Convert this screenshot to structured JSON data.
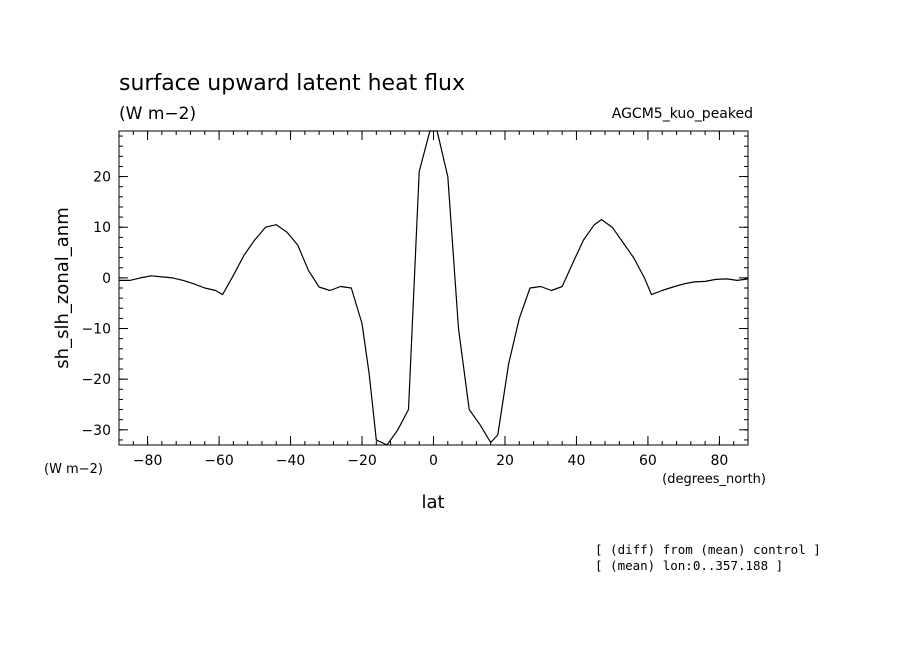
{
  "chart_data": {
    "type": "line",
    "title": "surface upward latent heat flux",
    "units": "(W m−2)",
    "run_label": "AGCM5_kuo_peaked",
    "xlabel": "lat",
    "xunits": "(degrees_north)",
    "ylabel": "sh_slh_zonal_anm",
    "yunits": "(W m−2)",
    "notes": [
      "[ (diff) from (mean) control ]",
      "[ (mean) lon:0..357.188 ]"
    ],
    "xlim": [
      -88,
      88
    ],
    "ylim": [
      -33,
      29
    ],
    "x_ticks": [
      -80,
      -60,
      -40,
      -20,
      0,
      20,
      40,
      60,
      80
    ],
    "x_tick_labels": [
      "−80",
      "−60",
      "−40",
      "−20",
      "0",
      "20",
      "40",
      "60",
      "80"
    ],
    "y_ticks": [
      -30,
      -20,
      -10,
      0,
      10,
      20
    ],
    "y_tick_labels": [
      "−30",
      "−20",
      "−10",
      "0",
      "10",
      "20"
    ],
    "grid": false,
    "series": [
      {
        "x": [
          -88,
          -85,
          -82,
          -79,
          -76,
          -73,
          -70,
          -67,
          -64,
          -61,
          -59,
          -56,
          -53,
          -50,
          -47,
          -44,
          -41,
          -38,
          -35,
          -32,
          -29,
          -26,
          -23,
          -20,
          -18,
          -16,
          -13,
          -10,
          -7,
          -4,
          -1,
          1,
          4,
          7,
          10,
          13,
          16,
          18,
          21,
          24,
          27,
          30,
          33,
          36,
          39,
          42,
          45,
          47,
          50,
          53,
          56,
          59,
          61,
          64,
          67,
          70,
          73,
          76,
          79,
          82,
          85,
          88
        ],
        "values": [
          -0.5,
          -0.5,
          0,
          0.4,
          0.2,
          0,
          -0.5,
          -1.2,
          -2,
          -2.5,
          -3.3,
          0.5,
          4.5,
          7.5,
          10,
          10.5,
          9,
          6.5,
          1.5,
          -1.8,
          -2.5,
          -1.7,
          -2,
          -9,
          -19,
          -32,
          -33,
          -30,
          -26,
          21,
          29,
          29,
          20,
          -10,
          -26,
          -29,
          -32.5,
          -31,
          -17,
          -8,
          -2,
          -1.7,
          -2.5,
          -1.7,
          3,
          7.5,
          10.5,
          11.5,
          10,
          7,
          4,
          0,
          -3.3,
          -2.5,
          -1.8,
          -1.2,
          -0.8,
          -0.7,
          -0.3,
          -0.2,
          -0.5,
          -0.2
        ]
      }
    ]
  }
}
